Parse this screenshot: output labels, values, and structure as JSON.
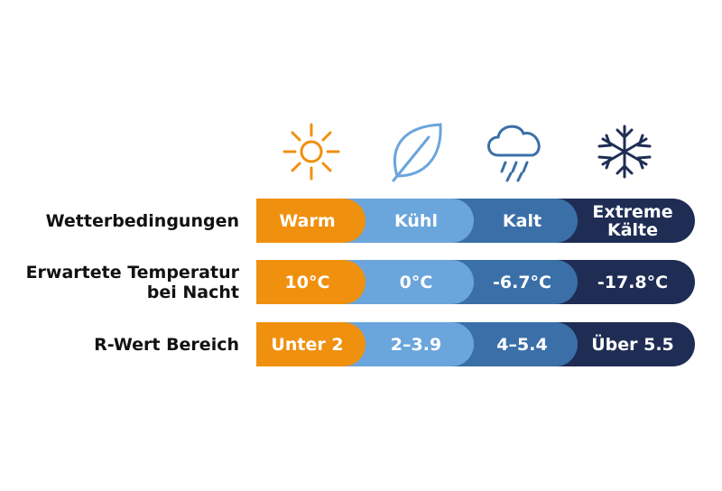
{
  "columns": [
    "Warm",
    "Kühl",
    "Kalt",
    "Extreme Kälte"
  ],
  "rows": [
    {
      "label": "Wetterbedingungen",
      "cells": [
        "Warm",
        "Kühl",
        "Kalt",
        "Extreme Kälte"
      ]
    },
    {
      "label": "Erwartete Temperatur bei Nacht",
      "cells": [
        "10°C",
        "0°C",
        "-6.7°C",
        "-17.8°C"
      ]
    },
    {
      "label": "R-Wert Bereich",
      "cells": [
        "Unter 2",
        "2–3.9",
        "4–5.4",
        "Über 5.5"
      ]
    }
  ]
}
